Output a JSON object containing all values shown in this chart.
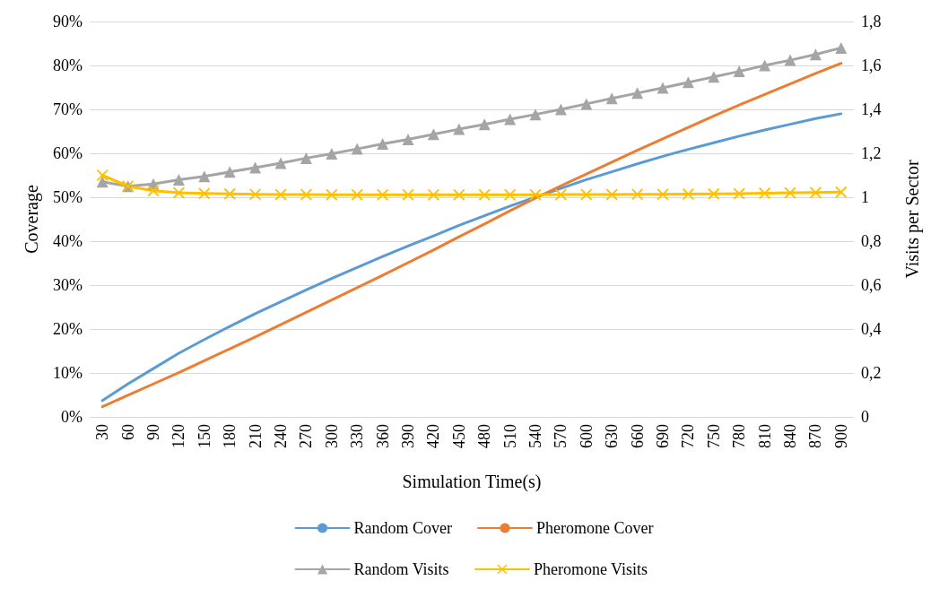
{
  "chart_data": {
    "type": "line",
    "xlabel": "Simulation Time(s)",
    "ylabel": "Coverage",
    "y2label": "Visits per Sector",
    "categories": [
      "30",
      "60",
      "90",
      "120",
      "150",
      "180",
      "210",
      "240",
      "270",
      "300",
      "330",
      "360",
      "390",
      "420",
      "450",
      "480",
      "510",
      "540",
      "570",
      "600",
      "630",
      "660",
      "690",
      "720",
      "750",
      "780",
      "810",
      "840",
      "870",
      "900"
    ],
    "ylim": [
      0,
      90
    ],
    "yticks": [
      {
        "value": 0,
        "label": "0%"
      },
      {
        "value": 10,
        "label": "10%"
      },
      {
        "value": 20,
        "label": "20%"
      },
      {
        "value": 30,
        "label": "30%"
      },
      {
        "value": 40,
        "label": "40%"
      },
      {
        "value": 50,
        "label": "50%"
      },
      {
        "value": 60,
        "label": "60%"
      },
      {
        "value": 70,
        "label": "70%"
      },
      {
        "value": 80,
        "label": "80%"
      },
      {
        "value": 90,
        "label": "90%"
      }
    ],
    "y2lim": [
      0,
      1.8
    ],
    "y2ticks": [
      0,
      {
        "value": 0.2,
        "label": "0,2"
      },
      {
        "value": 0.4,
        "label": "0,4"
      },
      {
        "value": 0.6,
        "label": "0,6"
      },
      {
        "value": 0.8,
        "label": "0,8"
      },
      1,
      {
        "value": 1.2,
        "label": "1,2"
      },
      {
        "value": 1.4,
        "label": "1,4"
      },
      {
        "value": 1.6,
        "label": "1,6"
      },
      {
        "value": 1.8,
        "label": "1,8"
      }
    ],
    "grid": "y",
    "legend": "bottom",
    "line_style": "solid",
    "series": [
      {
        "name": "Random Cover",
        "color": "#5b9bd5",
        "marker": "none",
        "values": [
          3.7,
          7.5,
          11,
          14.5,
          17.6,
          20.6,
          23.5,
          26.2,
          28.9,
          31.5,
          34,
          36.5,
          38.9,
          41.2,
          43.6,
          45.8,
          48,
          50,
          52,
          54,
          55.8,
          57.6,
          59.3,
          60.9,
          62.4,
          63.9,
          65.3,
          66.6,
          67.9,
          69
        ]
      },
      {
        "name": "Pheromone Cover",
        "color": "#ed7d31",
        "marker": "none",
        "values": [
          2.3,
          4.9,
          7.5,
          10.1,
          12.8,
          15.5,
          18.2,
          21,
          23.8,
          26.6,
          29.4,
          32.2,
          35.1,
          38,
          41,
          43.9,
          46.9,
          49.8,
          52.6,
          55.3,
          58,
          60.7,
          63.3,
          65.9,
          68.5,
          71,
          73.4,
          75.8,
          78.2,
          80.5
        ]
      },
      {
        "name": "Random Visits",
        "color": "#a5a5a5",
        "marker": "triangle",
        "axis": "y2",
        "values": [
          1.07,
          1.05,
          1.06,
          1.08,
          1.095,
          1.115,
          1.135,
          1.155,
          1.178,
          1.198,
          1.22,
          1.243,
          1.263,
          1.287,
          1.31,
          1.332,
          1.355,
          1.377,
          1.4,
          1.425,
          1.45,
          1.474,
          1.498,
          1.523,
          1.548,
          1.573,
          1.6,
          1.624,
          1.65,
          1.68
        ]
      },
      {
        "name": "Pheromone Visits",
        "color": "#ffc000",
        "marker": "cross",
        "axis": "y2",
        "values": [
          1.1,
          1.05,
          1.03,
          1.02,
          1.017,
          1.015,
          1.013,
          1.012,
          1.012,
          1.011,
          1.011,
          1.011,
          1.011,
          1.011,
          1.011,
          1.011,
          1.011,
          1.011,
          1.012,
          1.012,
          1.012,
          1.013,
          1.013,
          1.014,
          1.015,
          1.016,
          1.018,
          1.02,
          1.021,
          1.023
        ]
      }
    ]
  }
}
